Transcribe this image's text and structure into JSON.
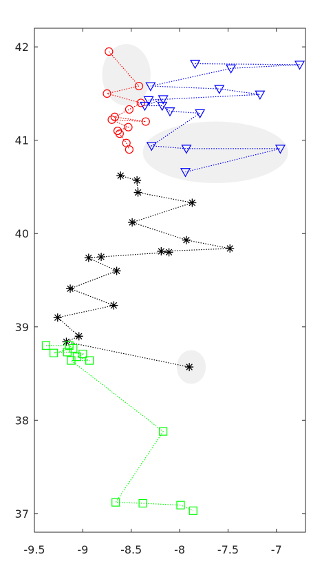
{
  "chart_data": {
    "type": "scatter",
    "xlim": [
      -9.5,
      -6.7
    ],
    "ylim": [
      36.8,
      42.2
    ],
    "xticks": [
      -9.5,
      -9,
      -8.5,
      -8,
      -7.5,
      -7
    ],
    "yticks": [
      37,
      38,
      39,
      40,
      41,
      42
    ],
    "xtick_labels": [
      "-9.5",
      "-9",
      "-8.5",
      "-8",
      "-7.5",
      "-7"
    ],
    "ytick_labels": [
      "37",
      "38",
      "39",
      "40",
      "41",
      "42"
    ],
    "grid": false,
    "regions": [
      {
        "cx": -8.55,
        "cy": 41.7,
        "rx": 0.25,
        "ry": 0.33,
        "color": "#f0f0f0"
      },
      {
        "cx": -7.63,
        "cy": 40.87,
        "rx": 0.75,
        "ry": 0.33,
        "color": "#f0f0f0"
      },
      {
        "cx": -7.88,
        "cy": 38.57,
        "rx": 0.15,
        "ry": 0.18,
        "color": "#f0f0f0"
      }
    ],
    "series": [
      {
        "marker": "circle",
        "color": "#ff0000",
        "points": [
          [
            -8.73,
            41.95
          ],
          [
            -8.42,
            41.58
          ],
          [
            -8.75,
            41.5
          ],
          [
            -8.4,
            41.4
          ],
          [
            -8.52,
            41.33
          ],
          [
            -8.67,
            41.25
          ],
          [
            -8.35,
            41.2
          ],
          [
            -8.7,
            41.22
          ],
          [
            -8.53,
            41.14
          ],
          [
            -8.64,
            41.1
          ],
          [
            -8.62,
            41.07
          ],
          [
            -8.55,
            40.97
          ],
          [
            -8.52,
            40.9
          ]
        ]
      },
      {
        "marker": "triangle-down",
        "color": "#0000ff",
        "points": [
          [
            -7.84,
            41.82
          ],
          [
            -6.76,
            41.81
          ],
          [
            -7.47,
            41.77
          ],
          [
            -8.3,
            41.58
          ],
          [
            -7.59,
            41.55
          ],
          [
            -7.17,
            41.49
          ],
          [
            -8.32,
            41.43
          ],
          [
            -8.17,
            41.44
          ],
          [
            -8.36,
            41.37
          ],
          [
            -8.18,
            41.37
          ],
          [
            -8.1,
            41.31
          ],
          [
            -7.79,
            41.29
          ],
          [
            -8.29,
            40.94
          ],
          [
            -7.93,
            40.91
          ],
          [
            -6.96,
            40.91
          ],
          [
            -7.94,
            40.66
          ]
        ]
      },
      {
        "marker": "asterisk",
        "color": "#000000",
        "points": [
          [
            -8.61,
            40.62
          ],
          [
            -8.44,
            40.57
          ],
          [
            -8.43,
            40.44
          ],
          [
            -7.87,
            40.33
          ],
          [
            -8.49,
            40.12
          ],
          [
            -7.93,
            39.93
          ],
          [
            -7.48,
            39.84
          ],
          [
            -8.19,
            39.81
          ],
          [
            -8.11,
            39.8
          ],
          [
            -8.81,
            39.75
          ],
          [
            -8.94,
            39.74
          ],
          [
            -8.65,
            39.6
          ],
          [
            -9.13,
            39.41
          ],
          [
            -8.68,
            39.23
          ],
          [
            -9.26,
            39.1
          ],
          [
            -9.04,
            38.9
          ],
          [
            -9.17,
            38.84
          ],
          [
            -7.9,
            38.57
          ]
        ]
      },
      {
        "marker": "square",
        "color": "#00ff00",
        "points": [
          [
            -9.38,
            38.8
          ],
          [
            -9.14,
            38.8
          ],
          [
            -9.1,
            38.77
          ],
          [
            -9.3,
            38.72
          ],
          [
            -9.16,
            38.73
          ],
          [
            -9.0,
            38.71
          ],
          [
            -9.06,
            38.68
          ],
          [
            -8.93,
            38.64
          ],
          [
            -9.12,
            38.64
          ],
          [
            -8.17,
            37.88
          ],
          [
            -8.66,
            37.12
          ],
          [
            -8.38,
            37.11
          ],
          [
            -7.99,
            37.09
          ],
          [
            -7.86,
            37.03
          ]
        ]
      }
    ]
  }
}
